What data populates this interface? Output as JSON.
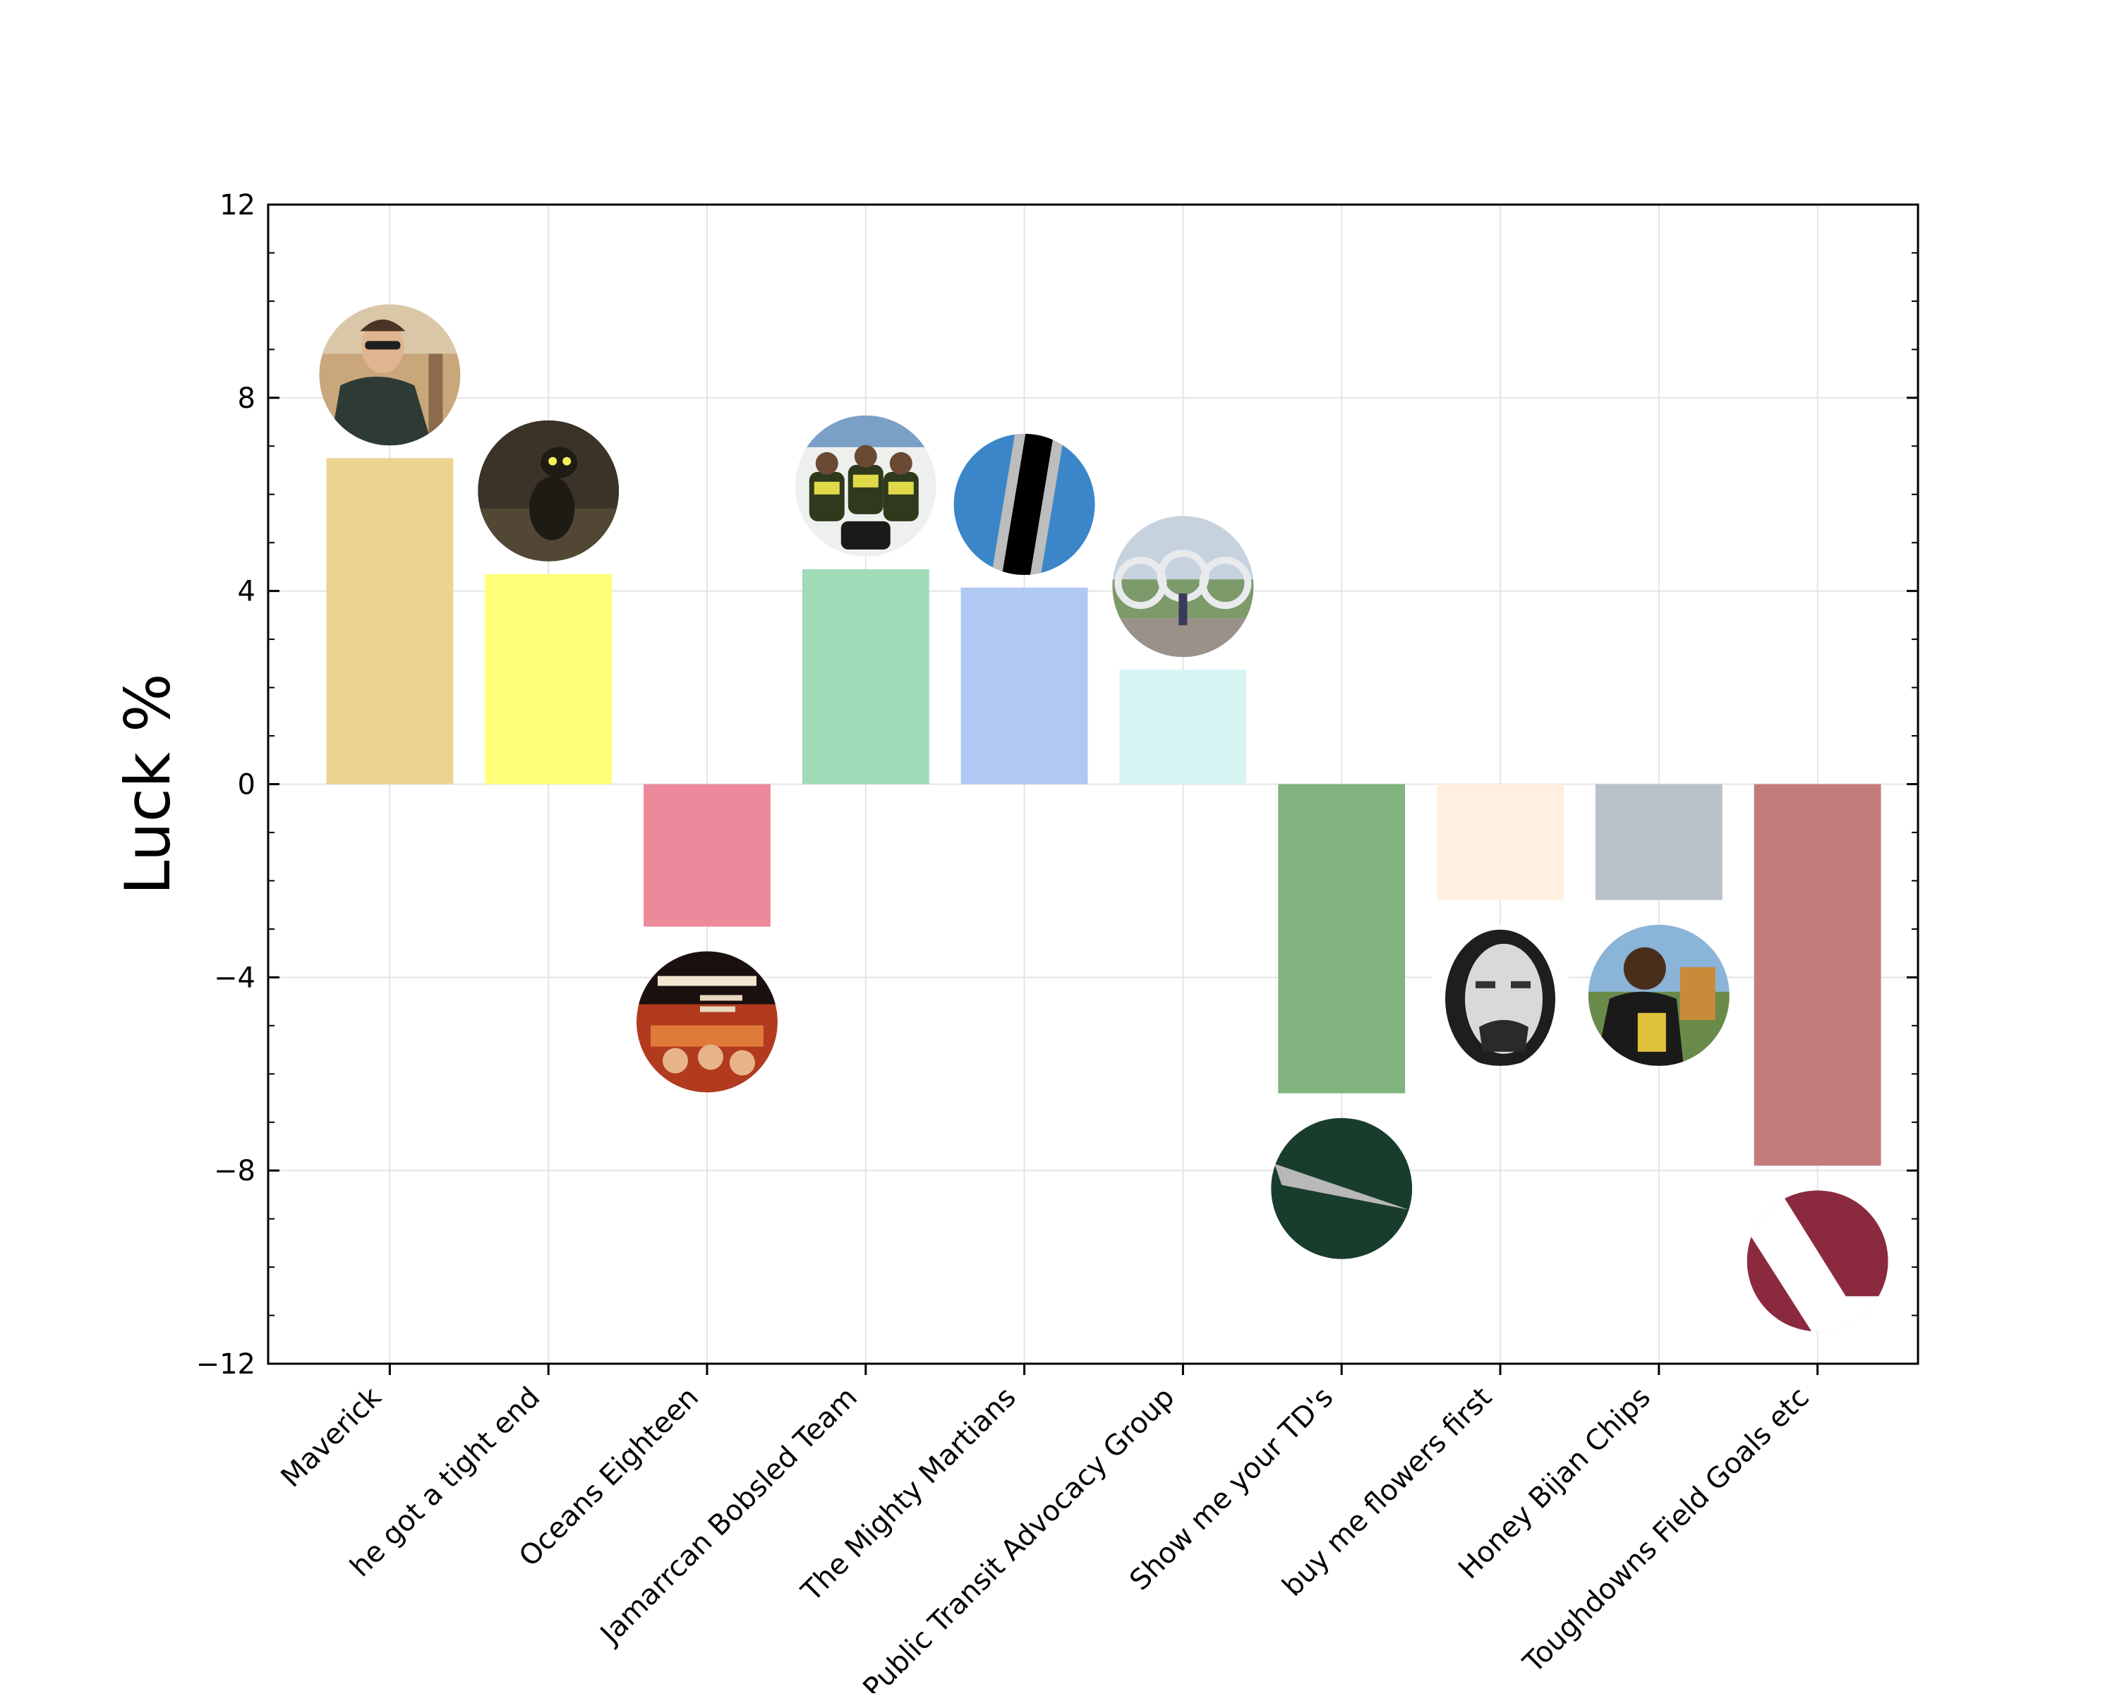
{
  "chart_data": {
    "type": "bar",
    "title": "",
    "xlabel": "",
    "ylabel": "Luck %",
    "ylim": [
      -12,
      12
    ],
    "yticks": [
      12,
      8,
      4,
      0,
      -4,
      -8,
      -12
    ],
    "ytick_labels": [
      "12",
      "8",
      "4",
      "0",
      "−4",
      "−8",
      "−12"
    ],
    "grid": true,
    "categories": [
      "Maverick",
      "he got a tight end",
      "Oceans Eighteen",
      "Jamarrcan Bobsled Team",
      "The Mighty Martians",
      "Public Transit Advocacy Group",
      "Show me your TD's",
      "buy me flowers first",
      "Honey Bijan Chips",
      "Toughdowns Field Goals etc"
    ],
    "values": [
      6.75,
      4.35,
      -2.95,
      4.45,
      4.07,
      2.37,
      -6.4,
      -2.4,
      -2.4,
      -7.9
    ],
    "colors": [
      "#ecd390",
      "#ffff7a",
      "#ec8a9b",
      "#a0dbb8",
      "#b0c8f4",
      "#d6f4f2",
      "#80b37e",
      "#fff0e0",
      "#b9c0c8",
      "#c27c7b"
    ],
    "team_logo_icons": [
      "pilot-portrait-icon",
      "dark-cat-icon",
      "movie-poster-icon",
      "bobsled-team-icon",
      "striped-ball-icon",
      "olympic-rings-icon",
      "green-slash-logo-icon",
      "sepia-face-icon",
      "football-player-icon",
      "maroon-stripe-logo-icon"
    ]
  }
}
